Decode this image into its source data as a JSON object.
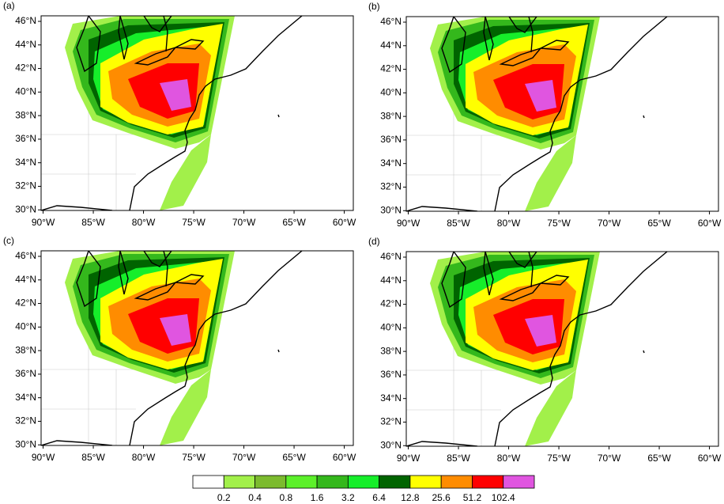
{
  "panels": [
    {
      "label": "(a)"
    },
    {
      "label": "(b)"
    },
    {
      "label": "(c)"
    },
    {
      "label": "(d)"
    }
  ],
  "xlim": [
    -90.2,
    -59.1
  ],
  "ylim": [
    29.95,
    46.47
  ],
  "xticks": [
    {
      "value": -90,
      "label": "90°W"
    },
    {
      "value": -85,
      "label": "85°W"
    },
    {
      "value": -80,
      "label": "80°W"
    },
    {
      "value": -75,
      "label": "75°W"
    },
    {
      "value": -70,
      "label": "70°W"
    },
    {
      "value": -65,
      "label": "65°W"
    },
    {
      "value": -60,
      "label": "60°W"
    }
  ],
  "yticks": [
    {
      "value": 30,
      "label": "30°N"
    },
    {
      "value": 32,
      "label": "32°N"
    },
    {
      "value": 34,
      "label": "34°N"
    },
    {
      "value": 36,
      "label": "36°N"
    },
    {
      "value": 38,
      "label": "38°N"
    },
    {
      "value": 40,
      "label": "40°N"
    },
    {
      "value": 42,
      "label": "42°N"
    },
    {
      "value": 44,
      "label": "44°N"
    },
    {
      "value": 46,
      "label": "46°N"
    }
  ],
  "colorbar": {
    "levels": [
      0.2,
      0.4,
      0.8,
      1.6,
      3.2,
      6.4,
      12.8,
      25.6,
      51.2,
      102.4
    ],
    "colors": [
      "#ffffff",
      "#a2f04a",
      "#7cbb2e",
      "#5cf02a",
      "#34b81c",
      "#16ee2a",
      "#006400",
      "#ffff00",
      "#ff8c00",
      "#ff0000",
      "#e055e0"
    ]
  }
}
